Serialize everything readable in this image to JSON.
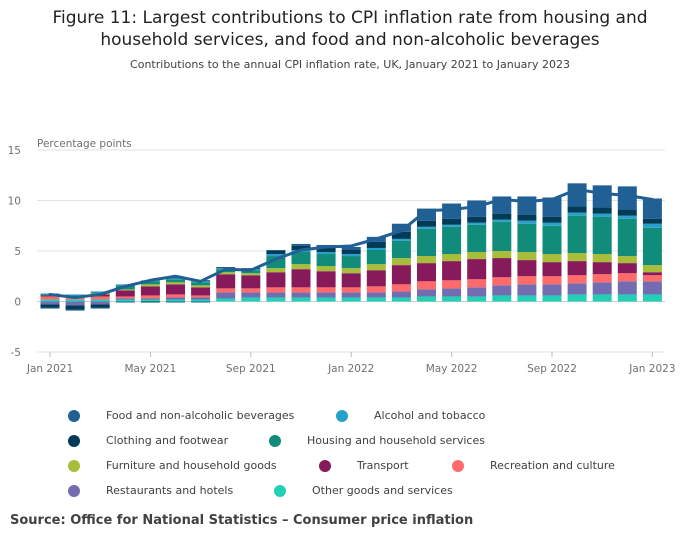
{
  "header": {
    "title_line1": "Figure 11: Largest contributions to CPI inflation rate from housing and",
    "title_line2": "household services, and food and non-alcoholic beverages",
    "subtitle": "Contributions to the annual CPI inflation rate, UK, January 2021 to January 2023"
  },
  "source": "Source: Office for National Statistics – Consumer price inflation",
  "chart_data": {
    "type": "bar",
    "stacked": true,
    "ylabel": "Percentage points",
    "ylim": [
      -5,
      15
    ],
    "yticks": [
      "15",
      "10",
      "5",
      "0",
      "-5"
    ],
    "grid": true,
    "legend_position": "bottom",
    "categories": [
      "Jan 2021",
      "Feb 2021",
      "Mar 2021",
      "Apr 2021",
      "May 2021",
      "Jun 2021",
      "Jul 2021",
      "Aug 2021",
      "Sep 2021",
      "Oct 2021",
      "Nov 2021",
      "Dec 2021",
      "Jan 2022",
      "Feb 2022",
      "Mar 2022",
      "Apr 2022",
      "May 2022",
      "Jun 2022",
      "Jul 2022",
      "Aug 2022",
      "Sep 2022",
      "Oct 2022",
      "Nov 2022",
      "Dec 2022",
      "Jan 2023"
    ],
    "xtick_labels": [
      "Jan 2021",
      "May 2021",
      "Sep 2021",
      "Jan 2022",
      "May 2022",
      "Sep 2022",
      "Jan 2023"
    ],
    "xtick_indices": [
      0,
      4,
      8,
      12,
      16,
      20,
      24
    ],
    "series": [
      {
        "name": "Other goods and services",
        "color": "#22d0b6",
        "values": [
          0.2,
          0.2,
          0.2,
          0.2,
          0.2,
          0.2,
          0.2,
          0.3,
          0.4,
          0.4,
          0.4,
          0.4,
          0.4,
          0.4,
          0.4,
          0.5,
          0.5,
          0.5,
          0.6,
          0.6,
          0.6,
          0.7,
          0.7,
          0.7,
          0.7
        ]
      },
      {
        "name": "Restaurants and hotels",
        "color": "#746cb1",
        "values": [
          -0.3,
          -0.4,
          -0.3,
          0.1,
          0.1,
          0.2,
          0.2,
          0.6,
          0.5,
          0.5,
          0.5,
          0.5,
          0.5,
          0.5,
          0.6,
          0.7,
          0.8,
          0.9,
          1.0,
          1.1,
          1.1,
          1.1,
          1.2,
          1.3,
          1.3
        ]
      },
      {
        "name": "Recreation and culture",
        "color": "#ff6b6b",
        "values": [
          0.3,
          0.2,
          0.3,
          0.2,
          0.3,
          0.3,
          0.2,
          0.4,
          0.4,
          0.5,
          0.5,
          0.5,
          0.5,
          0.6,
          0.7,
          0.8,
          0.8,
          0.8,
          0.8,
          0.8,
          0.8,
          0.8,
          0.8,
          0.8,
          0.6
        ]
      },
      {
        "name": "Transport",
        "color": "#871a5b",
        "values": [
          0.1,
          0.1,
          0.2,
          0.6,
          0.9,
          1.0,
          0.8,
          1.4,
          1.3,
          1.5,
          1.8,
          1.6,
          1.4,
          1.6,
          1.9,
          1.8,
          1.9,
          2.0,
          1.9,
          1.6,
          1.4,
          1.4,
          1.2,
          1.0,
          0.3
        ]
      },
      {
        "name": "Furniture and household goods",
        "color": "#a8bd3a",
        "values": [
          0.0,
          0.0,
          0.1,
          0.1,
          0.2,
          0.2,
          0.2,
          0.2,
          0.2,
          0.4,
          0.5,
          0.5,
          0.5,
          0.6,
          0.7,
          0.7,
          0.7,
          0.7,
          0.7,
          0.8,
          0.8,
          0.8,
          0.8,
          0.7,
          0.7
        ]
      },
      {
        "name": "Housing and household services",
        "color": "#118c7b",
        "values": [
          0.1,
          0.1,
          0.1,
          0.4,
          0.3,
          0.3,
          0.3,
          0.3,
          0.3,
          1.2,
          1.2,
          1.2,
          1.2,
          1.4,
          1.7,
          2.7,
          2.7,
          2.7,
          2.9,
          2.8,
          2.8,
          3.7,
          3.7,
          3.7,
          3.7
        ]
      },
      {
        "name": "Alcohol and tobacco",
        "color": "#27a0cc",
        "values": [
          0.1,
          0.1,
          0.1,
          0.1,
          0.1,
          0.1,
          0.1,
          0.1,
          0.1,
          0.2,
          0.2,
          0.2,
          0.2,
          0.2,
          0.2,
          0.2,
          0.2,
          0.2,
          0.2,
          0.3,
          0.3,
          0.3,
          0.3,
          0.3,
          0.4
        ]
      },
      {
        "name": "Clothing and footwear",
        "color": "#003c57",
        "values": [
          -0.3,
          -0.4,
          -0.3,
          0.0,
          -0.1,
          0.1,
          0.1,
          0.1,
          0.1,
          0.3,
          0.4,
          0.4,
          0.4,
          0.6,
          0.7,
          0.6,
          0.6,
          0.6,
          0.6,
          0.6,
          0.6,
          0.6,
          0.6,
          0.6,
          0.5
        ]
      },
      {
        "name": "Food and non-alcoholic beverages",
        "color": "#206095",
        "values": [
          -0.1,
          -0.1,
          -0.1,
          -0.1,
          0.0,
          -0.1,
          -0.1,
          0.0,
          0.0,
          0.1,
          0.2,
          0.3,
          0.3,
          0.5,
          0.8,
          1.2,
          1.5,
          1.6,
          1.7,
          1.8,
          1.9,
          2.3,
          2.2,
          2.3,
          2.0
        ]
      }
    ],
    "total": {
      "name": "CPI inflation rate",
      "color": "#206095",
      "values": [
        0.7,
        0.4,
        0.7,
        1.5,
        2.1,
        2.5,
        2.0,
        3.2,
        3.1,
        4.2,
        5.1,
        5.4,
        5.5,
        6.2,
        7.0,
        9.0,
        9.1,
        9.4,
        10.1,
        9.9,
        10.1,
        11.1,
        10.7,
        10.5,
        10.1
      ]
    }
  }
}
